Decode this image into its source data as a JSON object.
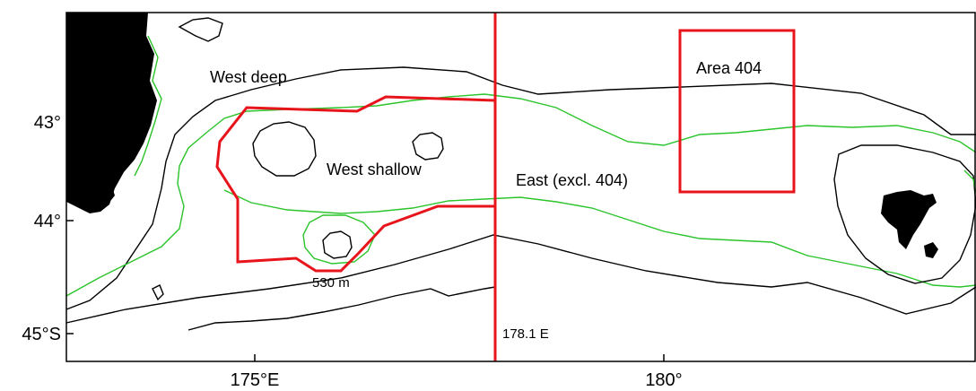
{
  "map": {
    "colors": {
      "depth_contour_black": "#000000",
      "depth_contour_green": "#2bc42b",
      "stratum_boundary": "#e8141b",
      "land": "#000000"
    },
    "y_ticks": [
      "43°",
      "44°",
      "45°S"
    ],
    "x_ticks": [
      "175°E",
      "180°"
    ],
    "labels": {
      "west_deep": "West deep",
      "west_shallow": "West shallow",
      "east": "East (excl. 404)",
      "area_404": "Area 404",
      "depth_530": "530 m",
      "meridian": "178.1 E"
    }
  }
}
